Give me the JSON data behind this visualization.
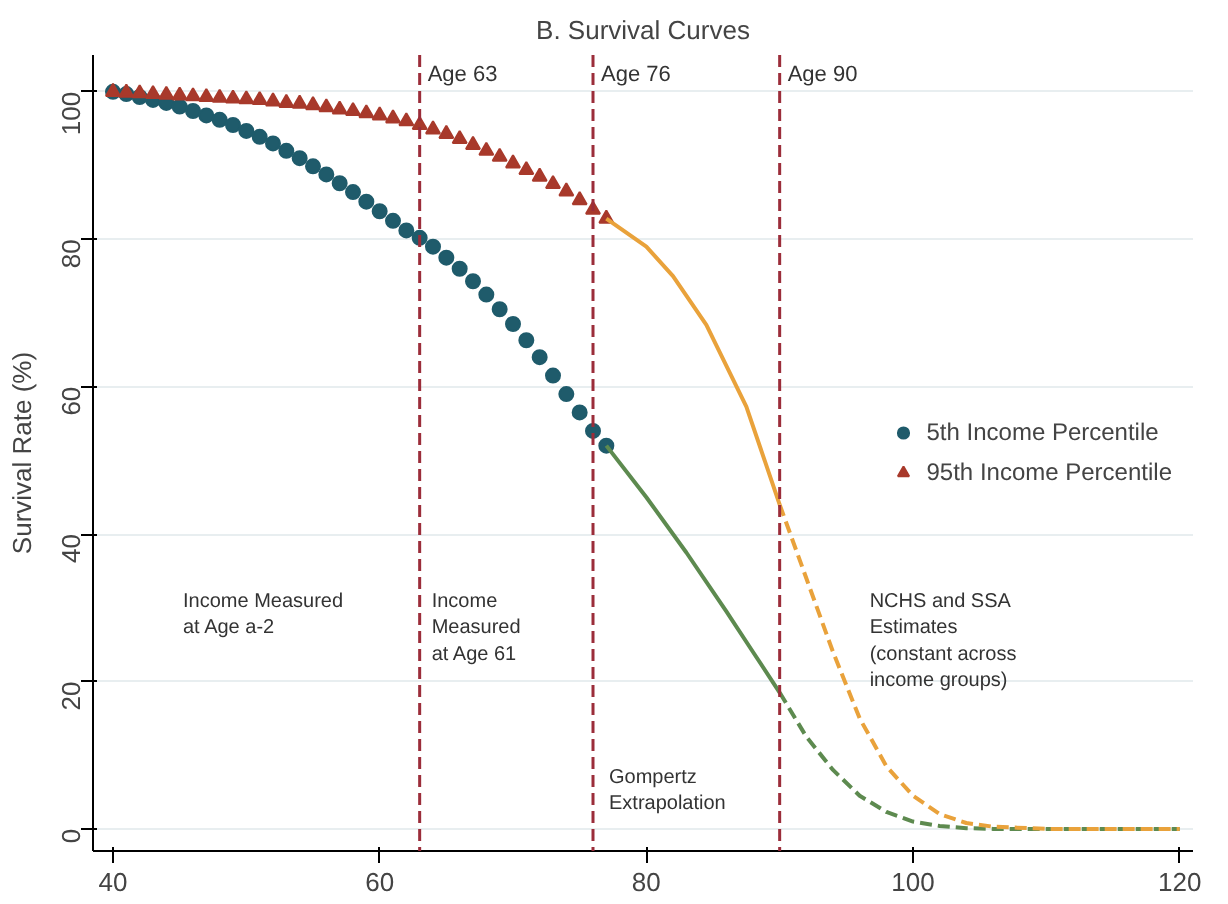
{
  "chart_data": {
    "type": "scatter",
    "title": "B. Survival Curves",
    "ylabel": "Survival Rate (%)",
    "xlim": [
      38.5,
      121
    ],
    "ylim": [
      -3,
      105
    ],
    "xticks": [
      40,
      60,
      80,
      100,
      120
    ],
    "yticks": [
      0,
      20,
      40,
      60,
      80,
      100
    ],
    "grid": "y",
    "legend": "right",
    "series": [
      {
        "name": "5th Income Percentile",
        "marker": "circle",
        "color": "#1f5b6b",
        "x": [
          40,
          41,
          42,
          43,
          44,
          45,
          46,
          47,
          48,
          49,
          50,
          51,
          52,
          53,
          54,
          55,
          56,
          57,
          58,
          59,
          60,
          61,
          62,
          63,
          64,
          65,
          66,
          67,
          68,
          69,
          70,
          71,
          72,
          73,
          74,
          75,
          76,
          77
        ],
        "values": [
          100,
          99.7,
          99.3,
          98.9,
          98.5,
          98,
          97.4,
          96.8,
          96.2,
          95.5,
          94.7,
          93.9,
          93,
          92,
          91,
          89.9,
          88.8,
          87.6,
          86.4,
          85.1,
          83.8,
          82.5,
          81.2,
          80.2,
          79,
          77.5,
          76,
          74.3,
          72.5,
          70.5,
          68.5,
          66.3,
          64,
          61.5,
          59,
          56.5,
          54,
          52
        ]
      },
      {
        "name": "95th Income Percentile",
        "marker": "triangle",
        "color": "#a8392b",
        "x": [
          40,
          41,
          42,
          43,
          44,
          45,
          46,
          47,
          48,
          49,
          50,
          51,
          52,
          53,
          54,
          55,
          56,
          57,
          58,
          59,
          60,
          61,
          62,
          63,
          64,
          65,
          66,
          67,
          68,
          69,
          70,
          71,
          72,
          73,
          74,
          75,
          76,
          77
        ],
        "values": [
          100,
          99.9,
          99.8,
          99.7,
          99.6,
          99.5,
          99.4,
          99.3,
          99.2,
          99.1,
          99,
          98.9,
          98.7,
          98.5,
          98.4,
          98.2,
          97.9,
          97.6,
          97.4,
          97.1,
          96.8,
          96.4,
          96,
          95.5,
          94.9,
          94.3,
          93.6,
          92.8,
          92,
          91.2,
          90.3,
          89.4,
          88.5,
          87.5,
          86.5,
          85.3,
          84,
          82.8
        ]
      },
      {
        "type": "line",
        "color": "#5d8a4f",
        "x": [
          77,
          80,
          83,
          86,
          88,
          90
        ],
        "values": [
          52,
          45,
          37.5,
          29.5,
          24,
          18.5
        ]
      },
      {
        "type": "line",
        "color": "#5d8a4f",
        "line_style": "dashed",
        "x": [
          90,
          92,
          94,
          96,
          98,
          100,
          102,
          104,
          106,
          110,
          120
        ],
        "values": [
          18.5,
          12.5,
          8,
          4.5,
          2.3,
          1,
          0.4,
          0.1,
          0,
          0,
          0
        ]
      },
      {
        "type": "line",
        "color": "#e9a23b",
        "x": [
          77,
          80,
          82,
          84.5,
          87.5,
          90
        ],
        "values": [
          82.8,
          79,
          75,
          68.4,
          57.3,
          44
        ]
      },
      {
        "type": "line",
        "color": "#e9a23b",
        "line_style": "dashed",
        "x": [
          90,
          92,
          94,
          96,
          98,
          100,
          102,
          104,
          106,
          110,
          120
        ],
        "values": [
          44,
          34,
          24,
          15,
          8.5,
          4.5,
          2,
          0.8,
          0.3,
          0,
          0
        ]
      }
    ],
    "ref_lines": [
      {
        "axis": "x",
        "value": 63,
        "label": "Age 63",
        "color": "#9b2d3a",
        "line_style": "dashed"
      },
      {
        "axis": "x",
        "value": 76,
        "label": "Age 76",
        "color": "#9b2d3a",
        "line_style": "dashed"
      },
      {
        "axis": "x",
        "value": 90,
        "label": "Age 90",
        "color": "#9b2d3a",
        "line_style": "dashed"
      }
    ],
    "annotations": [
      "Income Measured\nat Age a-2",
      "Income\nMeasured\nat Age 61",
      "Gompertz\nExtrapolation",
      "NCHS and SSA\nEstimates\n(constant across\nincome groups)"
    ]
  }
}
